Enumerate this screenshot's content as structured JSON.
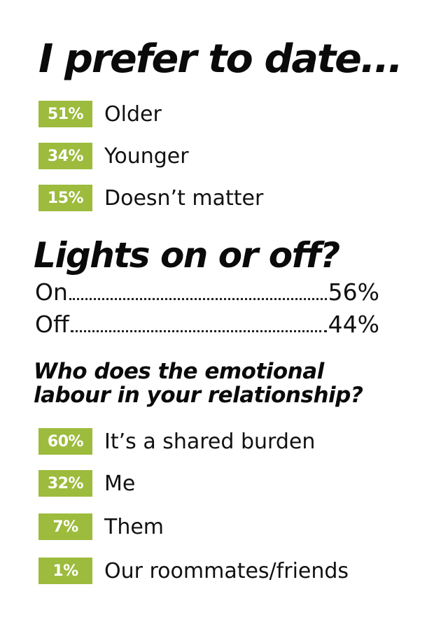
{
  "section1": {
    "heading": "I prefer to date...",
    "items": [
      {
        "percent": "51%",
        "label": "Older"
      },
      {
        "percent": "34%",
        "label": "Younger"
      },
      {
        "percent": "15%",
        "label": "Doesn’t matter"
      }
    ]
  },
  "section2": {
    "heading": "Lights on or off?",
    "items": [
      {
        "label": "On",
        "percent": "56%"
      },
      {
        "label": "Off",
        "percent": "44%"
      }
    ]
  },
  "section3": {
    "heading_line1": "Who does the emotional",
    "heading_line2": "labour in your relationship?",
    "items": [
      {
        "percent": "60%",
        "label": "It’s a shared burden"
      },
      {
        "percent": "32%",
        "label": "Me"
      },
      {
        "percent": "7%",
        "label": "Them"
      },
      {
        "percent": "1%",
        "label": "Our roommates/friends"
      }
    ]
  },
  "colors": {
    "accent": "#9dbb3c",
    "text": "#111111",
    "background": "#ffffff"
  }
}
